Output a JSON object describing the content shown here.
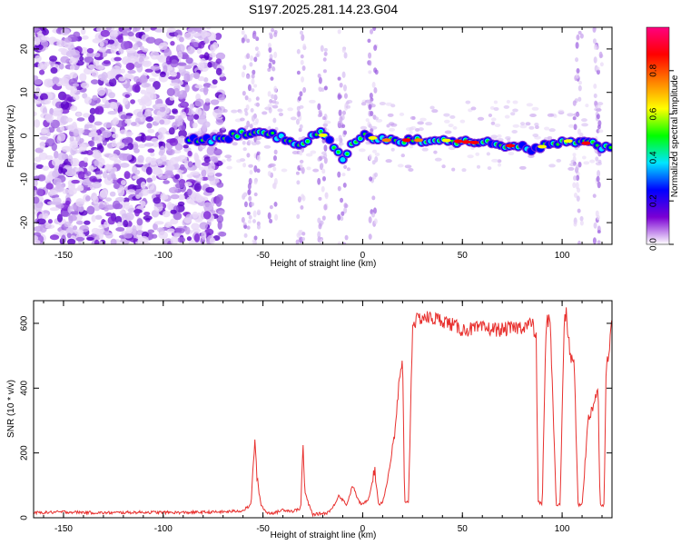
{
  "title": "S197.2025.281.14.23.G04",
  "chart_data": [
    {
      "type": "heatmap",
      "name": "spectrogram",
      "xlabel": "Height of straight line (km)",
      "ylabel": "Frequency (Hz)",
      "xlim": [
        -165,
        125
      ],
      "ylim": [
        -25,
        25
      ],
      "xticks": [
        -150,
        -100,
        -50,
        0,
        50,
        100
      ],
      "yticks": [
        -20,
        -10,
        0,
        10,
        20
      ],
      "ridge": {
        "x_start": -87,
        "x_end": 125,
        "points": [
          [
            -87,
            -1
          ],
          [
            -75,
            -1
          ],
          [
            -65,
            0
          ],
          [
            -55,
            1
          ],
          [
            -45,
            0
          ],
          [
            -38,
            -1
          ],
          [
            -30,
            -2
          ],
          [
            -22,
            1
          ],
          [
            -15,
            -2
          ],
          [
            -10,
            -5
          ],
          [
            -5,
            -2
          ],
          [
            0,
            0
          ],
          [
            10,
            -1
          ],
          [
            25,
            -1
          ],
          [
            40,
            -1
          ],
          [
            55,
            -1.5
          ],
          [
            70,
            -2
          ],
          [
            85,
            -3
          ],
          [
            95,
            -2
          ],
          [
            105,
            -1
          ],
          [
            115,
            -2
          ],
          [
            125,
            -3
          ]
        ]
      },
      "colorbar": {
        "label": "Normalized spectral amplitude",
        "range": [
          0,
          1
        ],
        "ticks": [
          "0.0",
          "0.2",
          "0.4",
          "0.6",
          "0.8"
        ],
        "colors": [
          "#ffffff",
          "#7b00d4",
          "#0000ff",
          "#00e5ff",
          "#00ff00",
          "#ffff00",
          "#ff8000",
          "#ff0000",
          "#ff0080"
        ]
      }
    },
    {
      "type": "line",
      "name": "snr",
      "xlabel": "Height of straight line (km)",
      "ylabel": "SNR (10 * v/v)",
      "xlim": [
        -165,
        125
      ],
      "ylim": [
        0,
        670
      ],
      "xticks": [
        -150,
        -100,
        -50,
        0,
        50,
        100
      ],
      "yticks": [
        0,
        200,
        400,
        600
      ],
      "color": "#e8302e",
      "series": [
        {
          "name": "SNR",
          "points": [
            [
              -165,
              15
            ],
            [
              -150,
              18
            ],
            [
              -130,
              15
            ],
            [
              -110,
              17
            ],
            [
              -90,
              16
            ],
            [
              -70,
              18
            ],
            [
              -60,
              22
            ],
            [
              -56,
              40
            ],
            [
              -54,
              250
            ],
            [
              -53,
              120
            ],
            [
              -51,
              40
            ],
            [
              -48,
              15
            ],
            [
              -44,
              15
            ],
            [
              -40,
              25
            ],
            [
              -35,
              20
            ],
            [
              -31,
              30
            ],
            [
              -30,
              230
            ],
            [
              -29,
              80
            ],
            [
              -27,
              40
            ],
            [
              -25,
              10
            ],
            [
              -18,
              15
            ],
            [
              -15,
              30
            ],
            [
              -12,
              70
            ],
            [
              -8,
              40
            ],
            [
              -5,
              100
            ],
            [
              -2,
              50
            ],
            [
              0,
              40
            ],
            [
              3,
              60
            ],
            [
              6,
              150
            ],
            [
              8,
              40
            ],
            [
              10,
              50
            ],
            [
              12,
              100
            ],
            [
              14,
              180
            ],
            [
              16,
              250
            ],
            [
              18,
              400
            ],
            [
              20,
              480
            ],
            [
              21,
              50
            ],
            [
              23,
              50
            ],
            [
              25,
              600
            ],
            [
              30,
              620
            ],
            [
              40,
              610
            ],
            [
              50,
              580
            ],
            [
              60,
              585
            ],
            [
              70,
              580
            ],
            [
              80,
              590
            ],
            [
              85,
              600
            ],
            [
              87,
              550
            ],
            [
              88,
              50
            ],
            [
              90,
              40
            ],
            [
              92,
              600
            ],
            [
              94,
              620
            ],
            [
              97,
              40
            ],
            [
              99,
              40
            ],
            [
              101,
              600
            ],
            [
              102,
              630
            ],
            [
              104,
              500
            ],
            [
              106,
              480
            ],
            [
              108,
              40
            ],
            [
              110,
              40
            ],
            [
              113,
              300
            ],
            [
              118,
              400
            ],
            [
              119,
              40
            ],
            [
              121,
              40
            ],
            [
              122,
              450
            ],
            [
              125,
              600
            ]
          ]
        }
      ]
    }
  ]
}
